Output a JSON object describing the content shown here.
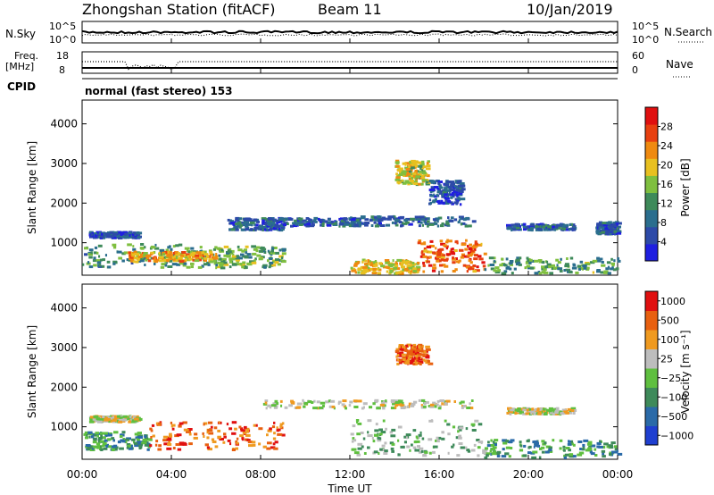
{
  "header": {
    "station": "Zhongshan Station (fitACF)",
    "beam": "Beam 11",
    "date": "10/Jan/2019"
  },
  "top_panels": {
    "nsky_label": "N.Sky",
    "nsearch_label": "N.Search",
    "noise_ticks_left": [
      "10^5",
      "10^0"
    ],
    "noise_ticks_right": [
      "10^5",
      "10^0"
    ],
    "freq_label_1": "Freq.",
    "freq_label_2": "[MHz]",
    "freq_ticks": [
      "18",
      "8"
    ],
    "nave_label": "Nave",
    "nave_ticks": [
      "60",
      "0"
    ],
    "cpid_label": "CPID",
    "cpid_text": "normal (fast stereo) 153"
  },
  "chart_data": [
    {
      "type": "heatmap",
      "id": "power",
      "ylabel": "Slant Range [km]",
      "ylim": [
        180,
        4600
      ],
      "yticks": [
        "1000",
        "2000",
        "3000",
        "4000"
      ],
      "yticks_values": [
        1000,
        2000,
        3000,
        4000
      ],
      "colorbar_label": "Power [dB]",
      "colorbar_ticks": [
        "4",
        "8",
        "12",
        "16",
        "20",
        "24",
        "28"
      ],
      "colorbar_tick_values": [
        4,
        8,
        12,
        16,
        20,
        24,
        28
      ],
      "colorbar_range": [
        0,
        32
      ],
      "colorbar_colors": [
        "#1f1fe0",
        "#2d4aa8",
        "#2b6e8e",
        "#3e8a5a",
        "#7fbf3f",
        "#e8c020",
        "#ef8a10",
        "#e84010",
        "#e01010"
      ],
      "regions": [
        {
          "t0": 0.0,
          "t1": 5.6,
          "r0": 400,
          "r1": 1000,
          "level": 12
        },
        {
          "t0": 0.3,
          "t1": 2.5,
          "r0": 1150,
          "r1": 1300,
          "level": 6
        },
        {
          "t0": 5.6,
          "t1": 9.0,
          "r0": 380,
          "r1": 950,
          "level": 14
        },
        {
          "t0": 2.0,
          "t1": 6.0,
          "r0": 550,
          "r1": 800,
          "level": 22
        },
        {
          "t0": 6.5,
          "t1": 9.0,
          "r0": 1350,
          "r1": 1650,
          "level": 7
        },
        {
          "t0": 8.0,
          "t1": 12.5,
          "r0": 1450,
          "r1": 1650,
          "level": 7
        },
        {
          "t0": 12.0,
          "t1": 17.5,
          "r0": 1450,
          "r1": 1700,
          "level": 8
        },
        {
          "t0": 14.0,
          "t1": 15.5,
          "r0": 2500,
          "r1": 3100,
          "level": 18
        },
        {
          "t0": 15.5,
          "t1": 17.0,
          "r0": 2000,
          "r1": 2600,
          "level": 6
        },
        {
          "t0": 12.0,
          "t1": 15.0,
          "r0": 250,
          "r1": 600,
          "level": 20
        },
        {
          "t0": 15.0,
          "t1": 18.0,
          "r0": 300,
          "r1": 1100,
          "level": 26
        },
        {
          "t0": 18.0,
          "t1": 24.0,
          "r0": 250,
          "r1": 650,
          "level": 13
        },
        {
          "t0": 19.0,
          "t1": 22.0,
          "r0": 1350,
          "r1": 1500,
          "level": 7
        },
        {
          "t0": 23.0,
          "t1": 24.0,
          "r0": 1250,
          "r1": 1550,
          "level": 7
        }
      ]
    },
    {
      "type": "heatmap",
      "id": "velocity",
      "ylabel": "Slant Range [km]",
      "ylim": [
        180,
        4600
      ],
      "yticks": [
        "1000",
        "2000",
        "3000",
        "4000"
      ],
      "yticks_values": [
        1000,
        2000,
        3000,
        4000
      ],
      "colorbar_label": "Velocity [m s⁻¹]",
      "colorbar_ticks": [
        "1000",
        "500",
        "100",
        "25",
        "−25",
        "−100",
        "−500",
        "−1000"
      ],
      "colorbar_colors": [
        "#1f3fd0",
        "#2a6aa8",
        "#3e8a5a",
        "#5fbf3f",
        "#bdbdbd",
        "#ef9a20",
        "#e86010",
        "#e01010"
      ],
      "regions": [
        {
          "t0": 0.0,
          "t1": 3.0,
          "r0": 450,
          "r1": 900,
          "level": 2
        },
        {
          "t0": 3.0,
          "t1": 9.0,
          "r0": 450,
          "r1": 1150,
          "level": 6
        },
        {
          "t0": 0.3,
          "t1": 2.5,
          "r0": 1150,
          "r1": 1300,
          "level": 4
        },
        {
          "t0": 8.0,
          "t1": 17.5,
          "r0": 1500,
          "r1": 1700,
          "level": 4
        },
        {
          "t0": 14.0,
          "t1": 15.5,
          "r0": 2600,
          "r1": 3100,
          "level": 6
        },
        {
          "t0": 12.0,
          "t1": 18.0,
          "r0": 300,
          "r1": 1200,
          "level": 3
        },
        {
          "t0": 18.0,
          "t1": 24.0,
          "r0": 250,
          "r1": 700,
          "level": 2
        },
        {
          "t0": 19.0,
          "t1": 22.0,
          "r0": 1350,
          "r1": 1500,
          "level": 4
        }
      ]
    }
  ],
  "x_axis": {
    "ticks": [
      "00:00",
      "04:00",
      "08:00",
      "12:00",
      "16:00",
      "20:00",
      "00:00"
    ],
    "tick_hours": [
      0,
      4,
      8,
      12,
      16,
      20,
      24
    ],
    "label": "Time UT"
  }
}
